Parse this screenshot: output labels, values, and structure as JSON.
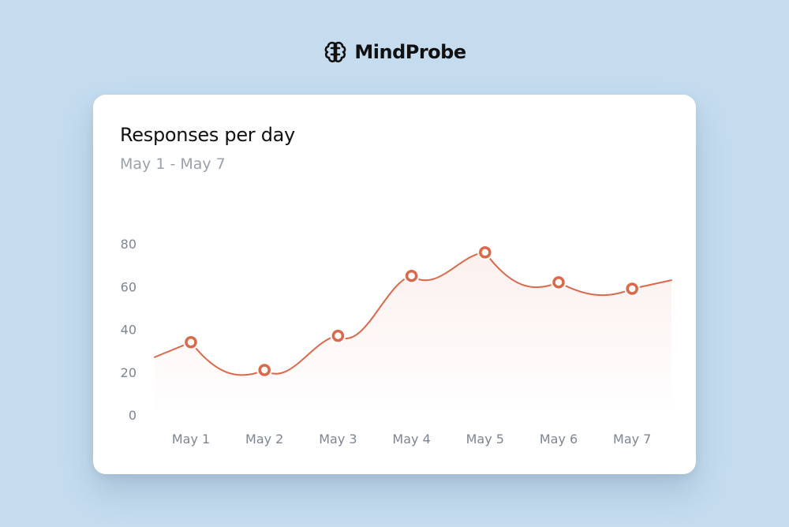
{
  "brand": {
    "name": "MindProbe",
    "icon": "brain-icon"
  },
  "colors": {
    "background": "#c5dcef",
    "line": "#d9694a",
    "marker_fill": "#ffffff",
    "axis_text": "#7d8592"
  },
  "chart_data": {
    "type": "line",
    "title": "Responses per day",
    "subtitle": "May 1 - May 7",
    "xlabel": "",
    "ylabel": "",
    "categories": [
      "May 1",
      "May 2",
      "May 3",
      "May 4",
      "May 5",
      "May 6",
      "May 7"
    ],
    "series": [
      {
        "name": "Responses",
        "values": [
          34,
          21,
          37,
          65,
          76,
          62,
          59
        ]
      }
    ],
    "yticks": [
      0,
      20,
      40,
      60,
      80
    ],
    "ylim": [
      0,
      80
    ],
    "grid": false,
    "legend": "none"
  }
}
